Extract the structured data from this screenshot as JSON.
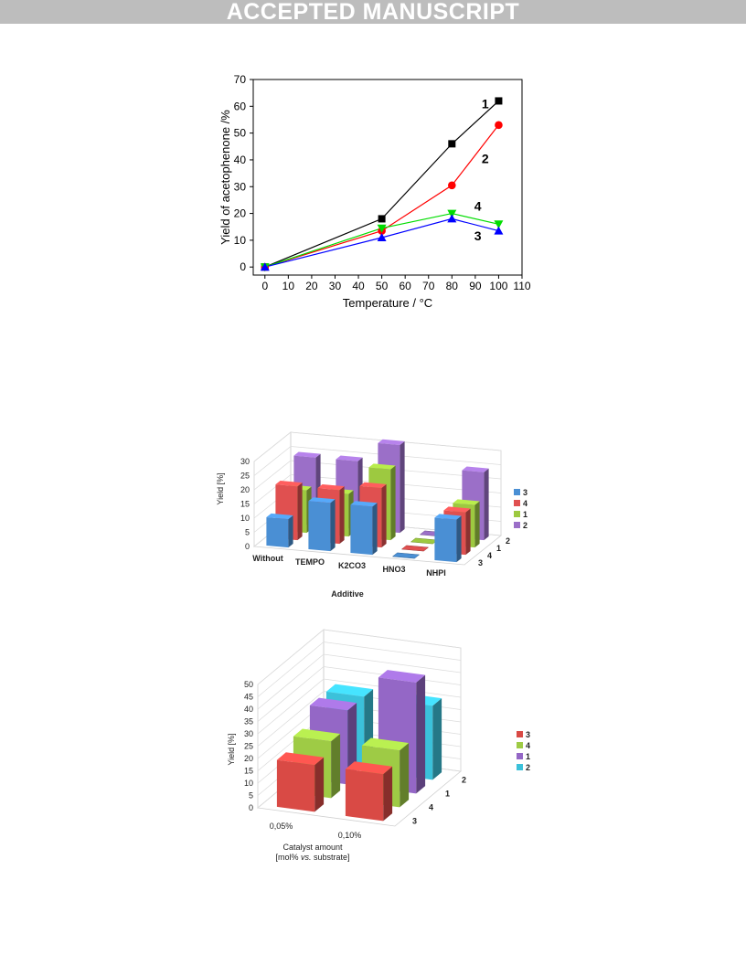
{
  "header": {
    "banner": "ACCEPTED MANUSCRIPT"
  },
  "chart_data": [
    {
      "type": "line",
      "xlabel": "Temperature / °C",
      "ylabel": "Yield of acetophenone /%",
      "xlim": [
        -5,
        110
      ],
      "ylim": [
        -3,
        70
      ],
      "xticks": [
        0,
        10,
        20,
        30,
        40,
        50,
        60,
        70,
        80,
        90,
        100,
        110
      ],
      "yticks": [
        0,
        10,
        20,
        30,
        40,
        50,
        60,
        70
      ],
      "grid": false,
      "series": [
        {
          "name": "1",
          "color": "#000000",
          "marker": "square",
          "x": [
            0,
            50,
            80,
            100
          ],
          "y": [
            0,
            18,
            46,
            62
          ]
        },
        {
          "name": "2",
          "color": "#ff0000",
          "marker": "circle",
          "x": [
            0,
            50,
            80,
            100
          ],
          "y": [
            0,
            13.5,
            30.5,
            53
          ]
        },
        {
          "name": "3",
          "color": "#0000ff",
          "marker": "triangle-up",
          "x": [
            0,
            50,
            80,
            100
          ],
          "y": [
            0,
            11,
            18,
            13.5
          ]
        },
        {
          "name": "4",
          "color": "#00dd00",
          "marker": "triangle-down",
          "x": [
            0,
            50,
            80,
            100
          ],
          "y": [
            0,
            14.5,
            20,
            16
          ]
        }
      ]
    },
    {
      "type": "bar",
      "xlabel": "Additive",
      "ylabel": "Yield [%]",
      "ylim": [
        0,
        30
      ],
      "yticks": [
        0,
        5,
        10,
        15,
        20,
        25,
        30
      ],
      "categories": [
        "Without",
        "TEMPO",
        "K2CO3",
        "HNO3",
        "NHPI"
      ],
      "depth_labels": [
        "3",
        "4",
        "1",
        "2"
      ],
      "legend_position": "right",
      "series": [
        {
          "name": "3",
          "color": "#4a8fd4",
          "values": [
            10,
            17,
            17,
            0,
            15
          ]
        },
        {
          "name": "4",
          "color": "#e05050",
          "values": [
            19,
            19,
            21,
            0,
            15
          ]
        },
        {
          "name": "1",
          "color": "#9dc940",
          "values": [
            15,
            15,
            25,
            0,
            15
          ]
        },
        {
          "name": "2",
          "color": "#9b6fc8",
          "values": [
            24,
            24,
            31,
            0,
            24
          ]
        }
      ]
    },
    {
      "type": "bar",
      "xlabel": "Catalyst amount",
      "xlabel_line2_pre": "[mol% ",
      "xlabel_line2_em": "vs.",
      "xlabel_line2_post": " substrate]",
      "ylabel": "Yield [%]",
      "ylim": [
        0,
        50
      ],
      "yticks": [
        0,
        5,
        10,
        15,
        20,
        25,
        30,
        35,
        40,
        45,
        50
      ],
      "categories": [
        "0,05%",
        "0,10%"
      ],
      "depth_labels": [
        "3",
        "4",
        "1",
        "2"
      ],
      "legend_position": "right",
      "series": [
        {
          "name": "3",
          "color": "#d94a45",
          "values": [
            19,
            19
          ]
        },
        {
          "name": "4",
          "color": "#9ecb45",
          "values": [
            23,
            23
          ]
        },
        {
          "name": "1",
          "color": "#9467c6",
          "values": [
            30,
            45
          ]
        },
        {
          "name": "2",
          "color": "#3bc1da",
          "values": [
            30,
            30
          ]
        }
      ]
    }
  ]
}
